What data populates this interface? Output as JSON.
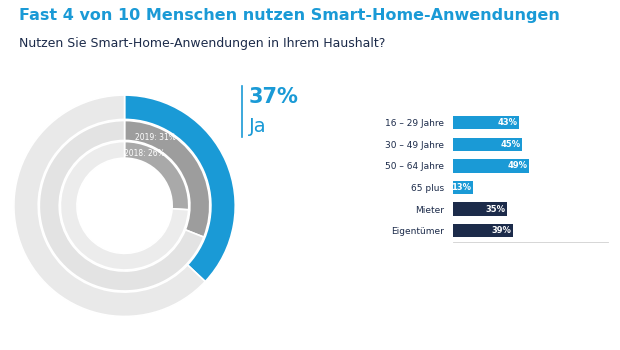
{
  "chart_data": [
    {
      "type": "pie",
      "title": "Fast 4 von 10 Menschen nutzen Smart-Home-Anwendungen",
      "subtitle": "Nutzen Sie Smart-Home-Anwendungen in Ihrem Haushalt?",
      "data_labels": true,
      "series": [
        {
          "name": "2018",
          "values": [
            26,
            74
          ],
          "value_labels": [
            "2018: 26%",
            null
          ],
          "colors": [
            "#a9a9a9",
            "#ececec"
          ]
        },
        {
          "name": "2019",
          "values": [
            31,
            69
          ],
          "value_labels": [
            "2019: 31%",
            null
          ],
          "colors": [
            "#9d9d9d",
            "#e3e3e3"
          ]
        },
        {
          "name": "Ja",
          "values": [
            37,
            63
          ],
          "value_labels": [
            "37%",
            null
          ],
          "colors": [
            "#1a9ad6",
            "#e9e9e9"
          ]
        }
      ]
    },
    {
      "type": "bar",
      "orientation": "horizontal",
      "categories": [
        "16 – 29 Jahre",
        "30 – 49 Jahre",
        "50 – 64 Jahre",
        "65 plus",
        "Mieter",
        "Eigentümer"
      ],
      "values": [
        43,
        45,
        49,
        13,
        35,
        39
      ],
      "value_labels": [
        "43%",
        "45%",
        "49%",
        "13%",
        "35%",
        "39%"
      ],
      "colors": [
        "#1a9ad6",
        "#1a9ad6",
        "#1a9ad6",
        "#1a9ad6",
        "#1c2b4a",
        "#1c2b4a"
      ],
      "xlim": [
        0,
        100
      ],
      "xticks": [],
      "data_labels": true,
      "tick_labels": "y"
    }
  ]
}
